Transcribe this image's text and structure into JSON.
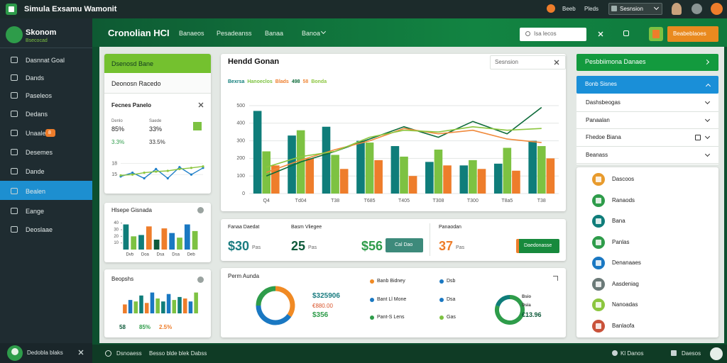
{
  "topbar": {
    "title": "Simula Exsamu Wamonit",
    "links": [
      "Beeb",
      "Pleds"
    ],
    "select": "Sesnsion"
  },
  "sidebar": {
    "brand": "Skonom",
    "brand_sub": "Bsecocad",
    "items": [
      "Dasnnat Goal",
      "Dands",
      "Paseleos",
      "Dedans",
      "Unaale",
      "Desemes",
      "Dande",
      "Bealen",
      "Eange",
      "Deoslaae"
    ],
    "badge": "8",
    "active_item": 7,
    "user": "Dedobla blaks"
  },
  "header": {
    "title": "Cronolian HCI",
    "nav": [
      "Banaeos",
      "Pesadeanss",
      "Banaa",
      "Banoa"
    ],
    "search": "Isa lecos",
    "button": "Beabeblaoes"
  },
  "left_panel": {
    "header": "Dsenosd Bane",
    "subheader": "Deonosn Racedo",
    "title": "Fecnes Panelo",
    "stats": [
      {
        "label": "Denlo",
        "value": "85%"
      },
      {
        "label": "Saede",
        "value": "33%"
      }
    ],
    "small": [
      "3.3%",
      "33.5%"
    ]
  },
  "mini_bar_panel": {
    "title": "Hlsepe Gisnada"
  },
  "bar_panel": {
    "title": "Beopshs",
    "footer": [
      "58",
      "85%",
      "2.5%"
    ]
  },
  "main_panel": {
    "title": "Hendd Gonan",
    "search": "Sesnsion"
  },
  "kpis": [
    {
      "label": "Fanaa Daedat",
      "value": "$30",
      "unit": "Pas"
    },
    {
      "label": "Basm Vliegee",
      "value": "25",
      "unit": "Pas"
    },
    {
      "value": "$56",
      "button": "Cal Dao"
    },
    {
      "label": "Panaodan",
      "value": "37",
      "unit": "Pas",
      "button": "Daedonasse"
    }
  ],
  "donut_panel": {
    "title": "Perm Aunda",
    "stats": [
      "$325906",
      "€880.00",
      "$356"
    ],
    "legend_values": [
      "Dsb",
      "Dsa",
      "Gas"
    ],
    "side": [
      "Bsio",
      "Dsia",
      "€13.96"
    ]
  },
  "right": {
    "header": "Pesbbiimona Danaes",
    "sub": "Bonb Sisnes",
    "rows": [
      "Dashsbeogas",
      "Panaalan",
      "Fhedoe Biana",
      "Beanass"
    ],
    "list": [
      "Dascoos",
      "Ranaods",
      "Bana",
      "Panlas",
      "Denanaaes",
      "Aasdeniag",
      "Nanoadas",
      "Banlaofa"
    ]
  },
  "footer": {
    "left": "Dsnoaess",
    "middle": "Besso blde blek Dabss",
    "right": [
      "Kl Danos",
      "Daesos"
    ]
  },
  "chart_data": [
    {
      "type": "combo",
      "categories": [
        "Q4",
        "Td04",
        "T38",
        "T685",
        "T405",
        "T308",
        "T300",
        "T8a5",
        "T38"
      ],
      "ylim": [
        0,
        500
      ],
      "yticks": [
        0,
        100,
        200,
        300,
        400,
        500
      ],
      "grid": true,
      "series": [
        {
          "name": "Bexrsa",
          "kind": "bar",
          "color": "#0f7d7a",
          "values": [
            470,
            330,
            380,
            300,
            270,
            180,
            160,
            170,
            300
          ]
        },
        {
          "name": "Hanoeclos",
          "kind": "bar",
          "color": "#7dc242",
          "values": [
            240,
            360,
            220,
            290,
            210,
            250,
            190,
            260,
            270
          ]
        },
        {
          "name": "Blads",
          "kind": "bar",
          "color": "#ee7d2b",
          "values": [
            160,
            200,
            140,
            190,
            100,
            160,
            140,
            130,
            200
          ]
        },
        {
          "name": "498",
          "kind": "line",
          "color": "#0e6b3a",
          "values": [
            100,
            180,
            240,
            310,
            380,
            320,
            410,
            340,
            490
          ]
        },
        {
          "name": "58",
          "kind": "line",
          "color": "#f08a3c",
          "values": [
            120,
            190,
            250,
            300,
            370,
            340,
            360,
            310,
            290
          ]
        },
        {
          "name": "Bonda",
          "kind": "line",
          "color": "#8cc63f",
          "values": [
            150,
            210,
            240,
            320,
            360,
            350,
            380,
            360,
            370
          ]
        }
      ]
    },
    {
      "type": "line",
      "ylim": [
        12,
        20
      ],
      "yticks": [
        15,
        18
      ],
      "series": [
        {
          "color": "#1f7fc8",
          "values": [
            14.5,
            15.5,
            14,
            16.5,
            14,
            17,
            15,
            16.8
          ]
        },
        {
          "color": "#8cc63f",
          "values": [
            14.8,
            15,
            15.5,
            15.8,
            16,
            16.5,
            16.8,
            17.2
          ]
        }
      ]
    },
    {
      "type": "bar",
      "categories": [
        "Dvb",
        null,
        "Doa",
        null,
        "Dsa",
        null,
        "Dsa",
        null,
        "Deb",
        null
      ],
      "values": [
        38,
        20,
        22,
        35,
        15,
        32,
        25,
        18,
        38,
        28
      ],
      "colors": [
        "#0f7d7a",
        "#7dc242",
        "#0f7d7a",
        "#ee7d2b",
        "#0e5a3a",
        "#ee7d2b",
        "#1a78c2",
        "#7dc242",
        "#1a78c2",
        "#7dc242"
      ],
      "ylim": [
        0,
        45
      ],
      "yticks": [
        10,
        20,
        30,
        40
      ]
    },
    {
      "type": "bar",
      "values": [
        30,
        45,
        40,
        60,
        35,
        70,
        50,
        40,
        65,
        45,
        55,
        50,
        40,
        70
      ],
      "colors": [
        "#ee7d2b",
        "#1a78c2",
        "#7dc242",
        "#0f7d7a",
        "#ee7d2b",
        "#1a78c2",
        "#7dc242",
        "#0f7d7a",
        "#1a78c2",
        "#7dc242",
        "#0f7d7a",
        "#ee7d2b",
        "#1a78c2",
        "#7dc242"
      ],
      "ylim": [
        0,
        100
      ]
    },
    {
      "type": "donut",
      "categories": [
        "Banb Bidney",
        "Bant Ll Mone",
        "Pant-S Lens"
      ],
      "values": [
        35,
        40,
        25
      ],
      "colors": [
        "#f08a24",
        "#1a78c2",
        "#2e9c4a"
      ]
    },
    {
      "type": "donut",
      "values": [
        80,
        20
      ],
      "colors": [
        "#2e9c4a",
        "#0f7d7a"
      ]
    }
  ]
}
